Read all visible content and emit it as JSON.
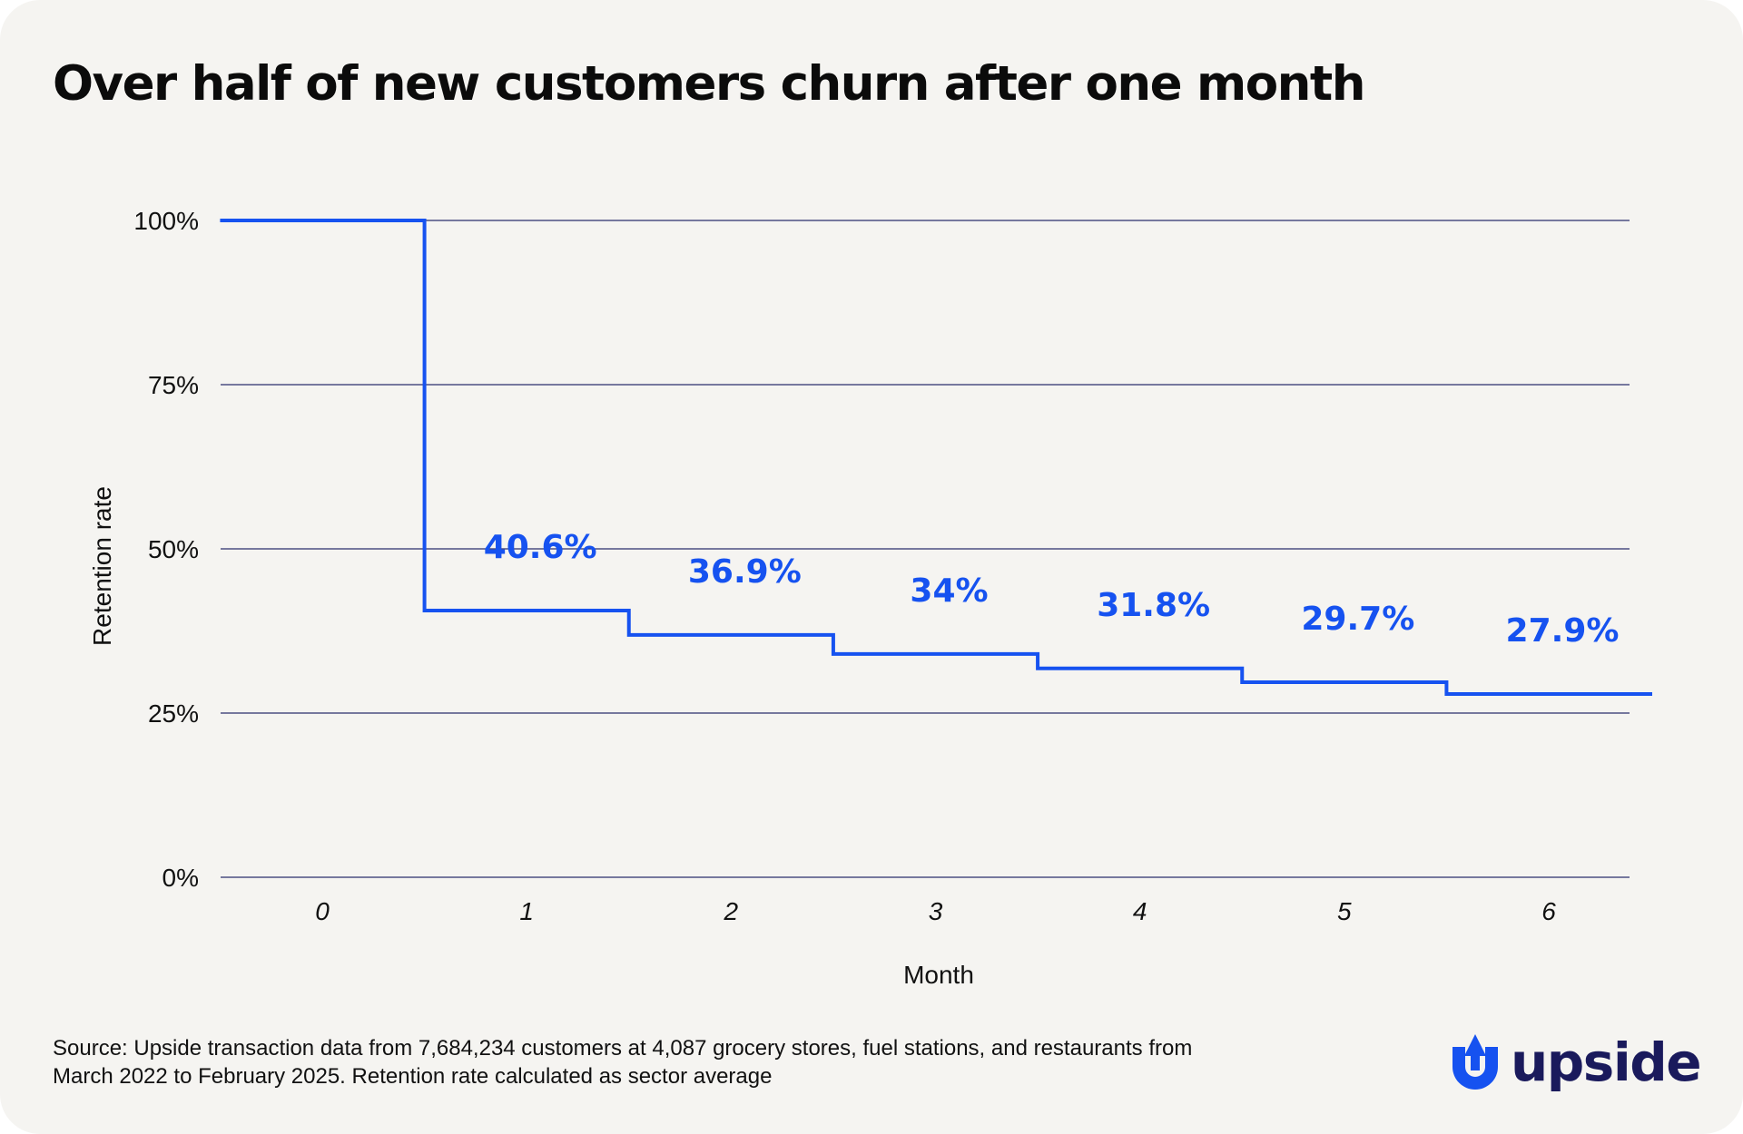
{
  "title": "Over half of new customers churn after one month",
  "source": "Source: Upside transaction data from 7,684,234 customers at 4,087 grocery stores, fuel stations, and restaurants from March 2022 to February 2025. Retention rate calculated as sector average",
  "logo": {
    "text": "upside",
    "icon": "upside-arrow-icon"
  },
  "colors": {
    "background": "#f5f4f1",
    "line": "#1652f0",
    "grid": "#2b2f6e",
    "logo_text": "#1a1a5c"
  },
  "chart_data": {
    "type": "line",
    "step": true,
    "title": "Over half of new customers churn after one month",
    "xlabel": "Month",
    "ylabel": "Retention rate",
    "x": [
      0,
      1,
      2,
      3,
      4,
      5,
      6
    ],
    "x_tick_labels": [
      "0",
      "1",
      "2",
      "3",
      "4",
      "5",
      "6"
    ],
    "ylim": [
      0,
      100
    ],
    "y_ticks": [
      0,
      25,
      50,
      75,
      100
    ],
    "y_tick_labels": [
      "0%",
      "25%",
      "50%",
      "75%",
      "100%"
    ],
    "grid": "horizontal",
    "series": [
      {
        "values": [
          100,
          40.6,
          36.9,
          34,
          31.8,
          29.7,
          27.9
        ],
        "data_labels": [
          "",
          "40.6%",
          "36.9%",
          "34%",
          "31.8%",
          "29.7%",
          "27.9%"
        ]
      }
    ]
  }
}
